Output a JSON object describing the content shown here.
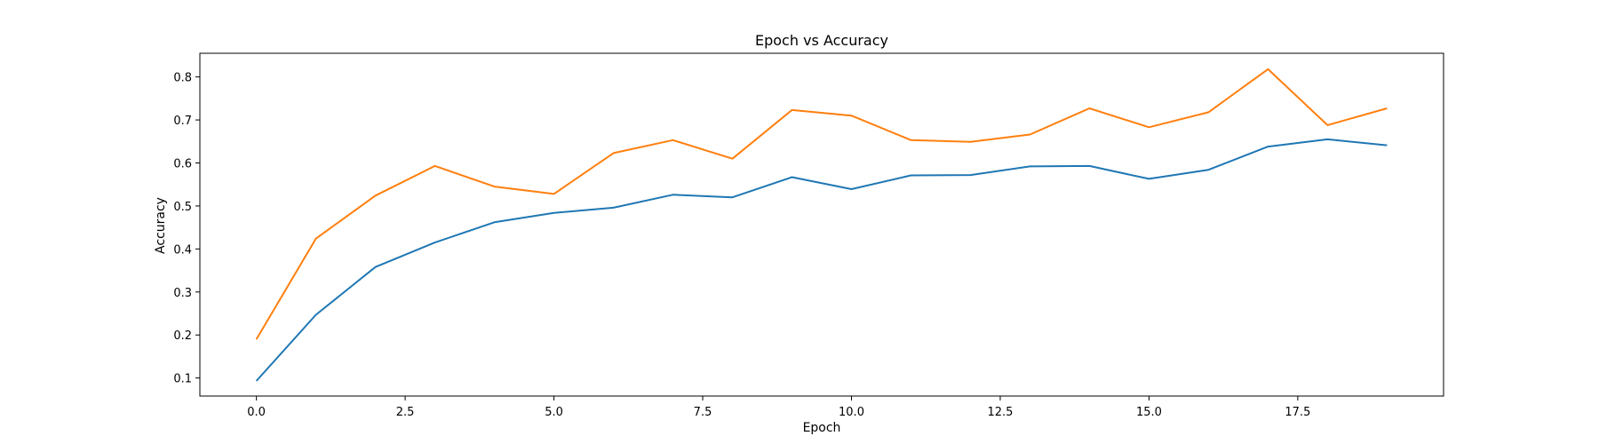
{
  "chart_data": {
    "type": "line",
    "title": "Epoch vs Accuracy",
    "xlabel": "Epoch",
    "ylabel": "Accuracy",
    "xlim": [
      -0.95,
      19.95
    ],
    "ylim": [
      0.058,
      0.855
    ],
    "x_ticks": [
      "0.0",
      "2.5",
      "5.0",
      "7.5",
      "10.0",
      "12.5",
      "15.0",
      "17.5"
    ],
    "y_ticks": [
      "0.1",
      "0.2",
      "0.3",
      "0.4",
      "0.5",
      "0.6",
      "0.7",
      "0.8"
    ],
    "grid": false,
    "x": [
      0,
      1,
      2,
      3,
      4,
      5,
      6,
      7,
      8,
      9,
      10,
      11,
      12,
      13,
      14,
      15,
      16,
      17,
      18,
      19
    ],
    "series": [
      {
        "color": "#1f77b4",
        "values": [
          0.093,
          0.247,
          0.358,
          0.415,
          0.462,
          0.484,
          0.496,
          0.526,
          0.52,
          0.567,
          0.539,
          0.571,
          0.572,
          0.592,
          0.593,
          0.563,
          0.584,
          0.638,
          0.655,
          0.641
        ]
      },
      {
        "color": "#ff7f0e",
        "values": [
          0.19,
          0.424,
          0.524,
          0.593,
          0.545,
          0.528,
          0.623,
          0.653,
          0.61,
          0.723,
          0.71,
          0.653,
          0.649,
          0.666,
          0.727,
          0.683,
          0.718,
          0.818,
          0.688,
          0.727
        ]
      }
    ]
  }
}
